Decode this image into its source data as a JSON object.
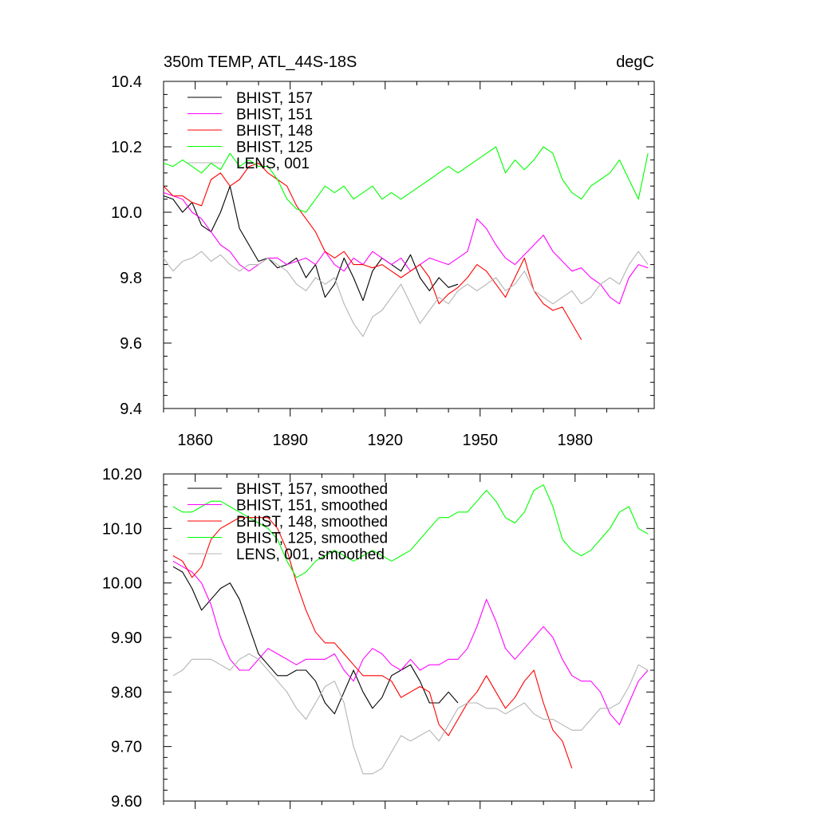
{
  "chart_data": [
    {
      "type": "line",
      "title": "350m TEMP, ATL_44S-18S",
      "units": "degC",
      "xlabel": "",
      "ylabel": "",
      "xlim": [
        1850,
        2005
      ],
      "ylim": [
        9.4,
        10.4
      ],
      "xticks": [
        1860,
        1890,
        1920,
        1950,
        1980
      ],
      "xtick_labels": [
        "1860",
        "1890",
        "1920",
        "1950",
        "1980"
      ],
      "yticks": [
        9.4,
        9.6,
        9.8,
        10.0,
        10.2,
        10.4
      ],
      "ytick_labels": [
        "9.4",
        "9.6",
        "9.8",
        "10.0",
        "10.2",
        "10.4"
      ],
      "legend_position": "top-left",
      "grid": false,
      "series": [
        {
          "name": "BHIST, 157",
          "color": "#000000",
          "x": [
            1850,
            1853,
            1856,
            1859,
            1862,
            1865,
            1868,
            1871,
            1874,
            1877,
            1880,
            1883,
            1886,
            1889,
            1892,
            1895,
            1898,
            1901,
            1904,
            1907,
            1910,
            1913,
            1916,
            1919,
            1922,
            1925,
            1928,
            1931,
            1934,
            1937,
            1940,
            1943
          ],
          "y": [
            10.05,
            10.04,
            10.0,
            10.03,
            9.96,
            9.94,
            10.0,
            10.08,
            9.95,
            9.9,
            9.85,
            9.86,
            9.83,
            9.84,
            9.86,
            9.8,
            9.84,
            9.74,
            9.78,
            9.86,
            9.8,
            9.73,
            9.82,
            9.86,
            9.84,
            9.82,
            9.87,
            9.8,
            9.76,
            9.8,
            9.77,
            9.78
          ]
        },
        {
          "name": "BHIST, 151",
          "color": "#ff00ff",
          "x": [
            1850,
            1853,
            1856,
            1859,
            1862,
            1865,
            1868,
            1871,
            1874,
            1877,
            1880,
            1883,
            1886,
            1889,
            1892,
            1895,
            1898,
            1901,
            1904,
            1907,
            1910,
            1913,
            1916,
            1919,
            1922,
            1925,
            1928,
            1931,
            1934,
            1937,
            1940,
            1943,
            1946,
            1949,
            1952,
            1955,
            1958,
            1961,
            1964,
            1967,
            1970,
            1973,
            1976,
            1979,
            1982,
            1985,
            1988,
            1991,
            1994,
            1997,
            2000,
            2003
          ],
          "y": [
            10.06,
            10.05,
            10.04,
            10.0,
            9.98,
            9.94,
            9.9,
            9.88,
            9.84,
            9.82,
            9.84,
            9.86,
            9.86,
            9.84,
            9.85,
            9.86,
            9.84,
            9.88,
            9.84,
            9.82,
            9.86,
            9.84,
            9.88,
            9.86,
            9.84,
            9.86,
            9.82,
            9.84,
            9.86,
            9.85,
            9.84,
            9.86,
            9.88,
            9.98,
            9.95,
            9.9,
            9.86,
            9.84,
            9.87,
            9.9,
            9.93,
            9.88,
            9.85,
            9.82,
            9.83,
            9.8,
            9.78,
            9.74,
            9.72,
            9.8,
            9.84,
            9.83
          ]
        },
        {
          "name": "BHIST, 148",
          "color": "#ff0000",
          "x": [
            1850,
            1853,
            1856,
            1859,
            1862,
            1865,
            1868,
            1871,
            1874,
            1877,
            1880,
            1883,
            1886,
            1889,
            1892,
            1895,
            1898,
            1901,
            1904,
            1907,
            1910,
            1913,
            1916,
            1919,
            1922,
            1925,
            1928,
            1931,
            1934,
            1937,
            1940,
            1943,
            1946,
            1949,
            1952,
            1955,
            1958,
            1961,
            1964,
            1967,
            1970,
            1973,
            1976,
            1979,
            1982
          ],
          "y": [
            10.08,
            10.05,
            10.05,
            10.03,
            10.02,
            10.1,
            10.12,
            10.08,
            10.1,
            10.14,
            10.15,
            10.12,
            10.1,
            10.08,
            10.02,
            9.98,
            9.94,
            9.88,
            9.86,
            9.88,
            9.84,
            9.84,
            9.83,
            9.84,
            9.82,
            9.8,
            9.82,
            9.84,
            9.8,
            9.72,
            9.75,
            9.77,
            9.8,
            9.84,
            9.82,
            9.78,
            9.74,
            9.8,
            9.86,
            9.76,
            9.72,
            9.7,
            9.71,
            9.66,
            9.61
          ]
        },
        {
          "name": "BHIST, 125",
          "color": "#00ff00",
          "x": [
            1850,
            1853,
            1856,
            1859,
            1862,
            1865,
            1868,
            1871,
            1874,
            1877,
            1880,
            1883,
            1886,
            1889,
            1892,
            1895,
            1898,
            1901,
            1904,
            1907,
            1910,
            1913,
            1916,
            1919,
            1922,
            1925,
            1928,
            1931,
            1934,
            1937,
            1940,
            1943,
            1946,
            1949,
            1952,
            1955,
            1958,
            1961,
            1964,
            1967,
            1970,
            1973,
            1976,
            1979,
            1982,
            1985,
            1988,
            1991,
            1994,
            1997,
            2000,
            2003
          ],
          "y": [
            10.15,
            10.14,
            10.16,
            10.14,
            10.12,
            10.15,
            10.13,
            10.18,
            10.14,
            10.16,
            10.14,
            10.14,
            10.1,
            10.04,
            10.01,
            10.0,
            10.04,
            10.08,
            10.06,
            10.08,
            10.04,
            10.06,
            10.08,
            10.04,
            10.06,
            10.04,
            10.06,
            10.08,
            10.1,
            10.12,
            10.14,
            10.12,
            10.14,
            10.16,
            10.18,
            10.2,
            10.12,
            10.16,
            10.13,
            10.16,
            10.2,
            10.18,
            10.1,
            10.06,
            10.04,
            10.08,
            10.1,
            10.12,
            10.16,
            10.1,
            10.04,
            10.18
          ]
        },
        {
          "name": "LENS, 001",
          "color": "#b4b4b4",
          "x": [
            1850,
            1853,
            1856,
            1859,
            1862,
            1865,
            1868,
            1871,
            1874,
            1877,
            1880,
            1883,
            1886,
            1889,
            1892,
            1895,
            1898,
            1901,
            1904,
            1907,
            1910,
            1913,
            1916,
            1919,
            1922,
            1925,
            1928,
            1931,
            1934,
            1937,
            1940,
            1943,
            1946,
            1949,
            1952,
            1955,
            1958,
            1961,
            1964,
            1967,
            1970,
            1973,
            1976,
            1979,
            1982,
            1985,
            1988,
            1991,
            1994,
            1997,
            2000,
            2003
          ],
          "y": [
            9.86,
            9.82,
            9.85,
            9.86,
            9.88,
            9.85,
            9.87,
            9.84,
            9.82,
            9.84,
            9.84,
            9.86,
            9.84,
            9.82,
            9.78,
            9.76,
            9.8,
            9.78,
            9.8,
            9.72,
            9.66,
            9.62,
            9.68,
            9.7,
            9.74,
            9.78,
            9.72,
            9.66,
            9.7,
            9.74,
            9.72,
            9.76,
            9.78,
            9.76,
            9.78,
            9.8,
            9.76,
            9.78,
            9.82,
            9.76,
            9.74,
            9.72,
            9.74,
            9.76,
            9.72,
            9.74,
            9.78,
            9.8,
            9.78,
            9.84,
            9.88,
            9.84
          ]
        }
      ]
    },
    {
      "type": "line",
      "title": "",
      "xlabel": "",
      "ylabel": "",
      "xlim": [
        1850,
        2005
      ],
      "ylim": [
        9.6,
        10.2
      ],
      "xticks": [
        1860,
        1890,
        1920,
        1950,
        1980
      ],
      "xtick_labels": [],
      "yticks": [
        9.6,
        9.7,
        9.8,
        9.9,
        10.0,
        10.1,
        10.2
      ],
      "ytick_labels": [
        "9.60",
        "9.70",
        "9.80",
        "9.90",
        "10.00",
        "10.10",
        "10.20"
      ],
      "legend_position": "top-left",
      "grid": false,
      "series": [
        {
          "name": "BHIST, 157, smoothed",
          "color": "#000000",
          "x": [
            1853,
            1856,
            1859,
            1862,
            1865,
            1868,
            1871,
            1874,
            1877,
            1880,
            1883,
            1886,
            1889,
            1892,
            1895,
            1898,
            1901,
            1904,
            1907,
            1910,
            1913,
            1916,
            1919,
            1922,
            1925,
            1928,
            1931,
            1934,
            1937,
            1940,
            1943
          ],
          "y": [
            10.03,
            10.02,
            9.99,
            9.95,
            9.97,
            9.99,
            10.0,
            9.97,
            9.92,
            9.87,
            9.85,
            9.83,
            9.83,
            9.84,
            9.84,
            9.82,
            9.78,
            9.76,
            9.8,
            9.84,
            9.8,
            9.77,
            9.79,
            9.83,
            9.84,
            9.85,
            9.82,
            9.78,
            9.78,
            9.8,
            9.78
          ]
        },
        {
          "name": "BHIST, 151, smoothed",
          "color": "#ff00ff",
          "x": [
            1853,
            1856,
            1859,
            1862,
            1865,
            1868,
            1871,
            1874,
            1877,
            1880,
            1883,
            1886,
            1889,
            1892,
            1895,
            1898,
            1901,
            1904,
            1907,
            1910,
            1913,
            1916,
            1919,
            1922,
            1925,
            1928,
            1931,
            1934,
            1937,
            1940,
            1943,
            1946,
            1949,
            1952,
            1955,
            1958,
            1961,
            1964,
            1967,
            1970,
            1973,
            1976,
            1979,
            1982,
            1985,
            1988,
            1991,
            1994,
            1997,
            2000,
            2003
          ],
          "y": [
            10.04,
            10.03,
            10.02,
            10.0,
            9.96,
            9.9,
            9.86,
            9.84,
            9.84,
            9.86,
            9.88,
            9.87,
            9.86,
            9.85,
            9.86,
            9.86,
            9.86,
            9.87,
            9.84,
            9.82,
            9.86,
            9.88,
            9.87,
            9.85,
            9.84,
            9.86,
            9.84,
            9.85,
            9.85,
            9.86,
            9.86,
            9.88,
            9.92,
            9.97,
            9.93,
            9.88,
            9.86,
            9.88,
            9.9,
            9.92,
            9.9,
            9.86,
            9.83,
            9.82,
            9.82,
            9.8,
            9.76,
            9.74,
            9.78,
            9.82,
            9.84
          ]
        },
        {
          "name": "BHIST, 148, smoothed",
          "color": "#ff0000",
          "x": [
            1853,
            1856,
            1859,
            1862,
            1865,
            1868,
            1871,
            1874,
            1877,
            1880,
            1883,
            1886,
            1889,
            1892,
            1895,
            1898,
            1901,
            1904,
            1907,
            1910,
            1913,
            1916,
            1919,
            1922,
            1925,
            1928,
            1931,
            1934,
            1937,
            1940,
            1943,
            1946,
            1949,
            1952,
            1955,
            1958,
            1961,
            1964,
            1967,
            1970,
            1973,
            1976,
            1979
          ],
          "y": [
            10.05,
            10.04,
            10.01,
            10.03,
            10.08,
            10.1,
            10.11,
            10.12,
            10.12,
            10.12,
            10.12,
            10.1,
            10.06,
            10.0,
            9.95,
            9.91,
            9.89,
            9.89,
            9.87,
            9.85,
            9.83,
            9.83,
            9.83,
            9.82,
            9.79,
            9.8,
            9.81,
            9.8,
            9.74,
            9.72,
            9.75,
            9.78,
            9.8,
            9.83,
            9.8,
            9.77,
            9.79,
            9.82,
            9.84,
            9.78,
            9.73,
            9.71,
            9.66
          ]
        },
        {
          "name": "BHIST, 125, smoothed",
          "color": "#00ff00",
          "x": [
            1853,
            1856,
            1859,
            1862,
            1865,
            1868,
            1871,
            1874,
            1877,
            1880,
            1883,
            1886,
            1889,
            1892,
            1895,
            1898,
            1901,
            1904,
            1907,
            1910,
            1913,
            1916,
            1919,
            1922,
            1925,
            1928,
            1931,
            1934,
            1937,
            1940,
            1943,
            1946,
            1949,
            1952,
            1955,
            1958,
            1961,
            1964,
            1967,
            1970,
            1973,
            1976,
            1979,
            1982,
            1985,
            1988,
            1991,
            1994,
            1997,
            2000,
            2003
          ],
          "y": [
            10.14,
            10.13,
            10.13,
            10.14,
            10.15,
            10.15,
            10.14,
            10.13,
            10.12,
            10.11,
            10.1,
            10.08,
            10.04,
            10.01,
            10.02,
            10.04,
            10.05,
            10.06,
            10.05,
            10.04,
            10.05,
            10.06,
            10.05,
            10.04,
            10.05,
            10.06,
            10.08,
            10.1,
            10.12,
            10.12,
            10.13,
            10.13,
            10.15,
            10.17,
            10.15,
            10.12,
            10.11,
            10.13,
            10.17,
            10.18,
            10.14,
            10.08,
            10.06,
            10.05,
            10.06,
            10.08,
            10.1,
            10.13,
            10.14,
            10.1,
            10.09
          ]
        },
        {
          "name": "LENS, 001, smoothed",
          "color": "#b4b4b4",
          "x": [
            1853,
            1856,
            1859,
            1862,
            1865,
            1868,
            1871,
            1874,
            1877,
            1880,
            1883,
            1886,
            1889,
            1892,
            1895,
            1898,
            1901,
            1904,
            1907,
            1910,
            1913,
            1916,
            1919,
            1922,
            1925,
            1928,
            1931,
            1934,
            1937,
            1940,
            1943,
            1946,
            1949,
            1952,
            1955,
            1958,
            1961,
            1964,
            1967,
            1970,
            1973,
            1976,
            1979,
            1982,
            1985,
            1988,
            1991,
            1994,
            1997,
            2000,
            2003
          ],
          "y": [
            9.83,
            9.84,
            9.86,
            9.86,
            9.86,
            9.85,
            9.84,
            9.86,
            9.87,
            9.86,
            9.84,
            9.82,
            9.8,
            9.77,
            9.75,
            9.78,
            9.81,
            9.82,
            9.78,
            9.7,
            9.65,
            9.65,
            9.66,
            9.69,
            9.72,
            9.71,
            9.72,
            9.73,
            9.71,
            9.74,
            9.77,
            9.78,
            9.78,
            9.77,
            9.77,
            9.76,
            9.77,
            9.78,
            9.76,
            9.75,
            9.75,
            9.74,
            9.73,
            9.73,
            9.75,
            9.77,
            9.77,
            9.78,
            9.81,
            9.85,
            9.84
          ]
        }
      ]
    }
  ]
}
